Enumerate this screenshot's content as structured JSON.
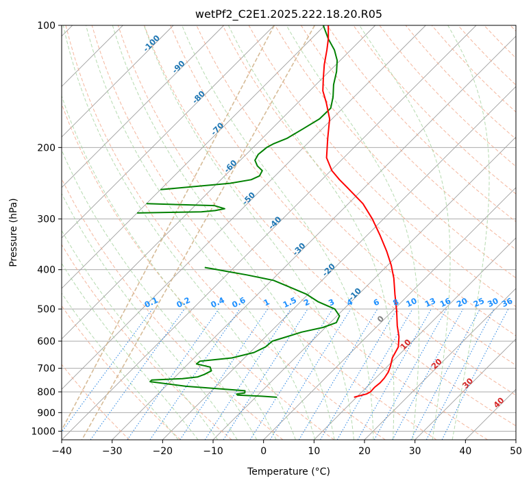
{
  "chart_data": {
    "type": "line",
    "title": "wetPf2_C2E1.2025.222.18.20.R05",
    "xlabel": "Temperature (°C)",
    "ylabel": "Pressure (hPa)",
    "xlim": [
      -40,
      50
    ],
    "ylim": [
      1050,
      100
    ],
    "y_scale": "log",
    "skew": true,
    "grid": true,
    "xticks": [
      "−40",
      "−30",
      "−20",
      "−10",
      "0",
      "10",
      "20",
      "30",
      "40",
      "50"
    ],
    "xtick_values": [
      -40,
      -30,
      -20,
      -10,
      0,
      10,
      20,
      30,
      40,
      50
    ],
    "yticks": [
      "100",
      "200",
      "300",
      "400",
      "500",
      "600",
      "700",
      "800",
      "900",
      "1000"
    ],
    "ytick_values": [
      100,
      200,
      300,
      400,
      500,
      600,
      700,
      800,
      900,
      1000
    ],
    "colors": {
      "temperature": "#ff0000",
      "dewpoint": "#008000",
      "isotherm": "#9e9e9e",
      "dry_adiabat": "#f2a98c",
      "moist_adiabat": "#a8d3a1",
      "mixing_ratio": "#1f7fe0",
      "lcl": "#d2b48c",
      "dry_label": "#d62728",
      "iso_label": "#1f77b4",
      "mr_label": "#1e90ff"
    },
    "series": [
      {
        "kind": "temperature",
        "points": [
          {
            "p": 825,
            "t": 9.5
          },
          {
            "p": 810,
            "t": 11.3
          },
          {
            "p": 800,
            "t": 11.7
          },
          {
            "p": 780,
            "t": 11.6
          },
          {
            "p": 760,
            "t": 11.8
          },
          {
            "p": 740,
            "t": 11.7
          },
          {
            "p": 715,
            "t": 11.3
          },
          {
            "p": 690,
            "t": 10.5
          },
          {
            "p": 660,
            "t": 9.3
          },
          {
            "p": 620,
            "t": 8.3
          },
          {
            "p": 585,
            "t": 6.4
          },
          {
            "p": 550,
            "t": 3.9
          },
          {
            "p": 505,
            "t": 0.8
          },
          {
            "p": 460,
            "t": -2.8
          },
          {
            "p": 420,
            "t": -6.2
          },
          {
            "p": 390,
            "t": -9.3
          },
          {
            "p": 360,
            "t": -13.0
          },
          {
            "p": 330,
            "t": -17.3
          },
          {
            "p": 300,
            "t": -22.2
          },
          {
            "p": 275,
            "t": -27.1
          },
          {
            "p": 255,
            "t": -32.3
          },
          {
            "p": 240,
            "t": -36.5
          },
          {
            "p": 228,
            "t": -39.8
          },
          {
            "p": 212,
            "t": -43.4
          },
          {
            "p": 190,
            "t": -47.0
          },
          {
            "p": 170,
            "t": -50.5
          },
          {
            "p": 155,
            "t": -54.4
          },
          {
            "p": 145,
            "t": -57.4
          },
          {
            "p": 135,
            "t": -59.8
          },
          {
            "p": 125,
            "t": -62.3
          },
          {
            "p": 115,
            "t": -64.7
          },
          {
            "p": 108,
            "t": -66.6
          },
          {
            "p": 100,
            "t": -69.3
          }
        ]
      },
      {
        "kind": "dewpoint",
        "points": [
          {
            "p": 825,
            "t": -5.8
          },
          {
            "p": 820,
            "t": -9.0
          },
          {
            "p": 815,
            "t": -14.0
          },
          {
            "p": 810,
            "t": -14.4
          },
          {
            "p": 805,
            "t": -13.0
          },
          {
            "p": 795,
            "t": -13.4
          },
          {
            "p": 775,
            "t": -26.0
          },
          {
            "p": 755,
            "t": -34.0
          },
          {
            "p": 748,
            "t": -34.0
          },
          {
            "p": 742,
            "t": -28.2
          },
          {
            "p": 735,
            "t": -25.5
          },
          {
            "p": 725,
            "t": -24.7
          },
          {
            "p": 710,
            "t": -24.0
          },
          {
            "p": 695,
            "t": -25.0
          },
          {
            "p": 683,
            "t": -28.3
          },
          {
            "p": 672,
            "t": -28.2
          },
          {
            "p": 660,
            "t": -22.5
          },
          {
            "p": 640,
            "t": -19.2
          },
          {
            "p": 620,
            "t": -18.0
          },
          {
            "p": 600,
            "t": -17.8
          },
          {
            "p": 585,
            "t": -15.8
          },
          {
            "p": 570,
            "t": -13.8
          },
          {
            "p": 555,
            "t": -10.5
          },
          {
            "p": 540,
            "t": -8.8
          },
          {
            "p": 520,
            "t": -9.5
          },
          {
            "p": 500,
            "t": -11.8
          },
          {
            "p": 480,
            "t": -16.5
          },
          {
            "p": 460,
            "t": -20.3
          },
          {
            "p": 440,
            "t": -25.5
          },
          {
            "p": 425,
            "t": -29.6
          },
          {
            "p": 412,
            "t": -36.0
          },
          {
            "p": 405,
            "t": -40.0
          },
          {
            "p": 398,
            "t": -44.0
          },
          {
            "p": 395,
            "t": -45.8
          }
        ]
      },
      {
        "kind": "dewpoint",
        "points": [
          {
            "p": 290,
            "t": -70.0
          },
          {
            "p": 288,
            "t": -57.5
          },
          {
            "p": 286,
            "t": -55.0
          },
          {
            "p": 283,
            "t": -53.5
          },
          {
            "p": 278,
            "t": -56.2
          },
          {
            "p": 275,
            "t": -70.0
          }
        ]
      },
      {
        "kind": "dewpoint",
        "points": [
          {
            "p": 254,
            "t": -70.0
          },
          {
            "p": 250,
            "t": -64.5
          },
          {
            "p": 245,
            "t": -57.5
          },
          {
            "p": 240,
            "t": -54.0
          },
          {
            "p": 235,
            "t": -53.1
          },
          {
            "p": 228,
            "t": -53.6
          },
          {
            "p": 222,
            "t": -55.5
          },
          {
            "p": 215,
            "t": -57.1
          },
          {
            "p": 208,
            "t": -57.6
          },
          {
            "p": 200,
            "t": -57.3
          },
          {
            "p": 196,
            "t": -56.7
          },
          {
            "p": 190,
            "t": -55.1
          },
          {
            "p": 180,
            "t": -53.8
          },
          {
            "p": 170,
            "t": -52.5
          },
          {
            "p": 160,
            "t": -52.4
          },
          {
            "p": 150,
            "t": -54.2
          },
          {
            "p": 140,
            "t": -56.5
          },
          {
            "p": 130,
            "t": -58.5
          },
          {
            "p": 122,
            "t": -60.6
          },
          {
            "p": 115,
            "t": -63.2
          },
          {
            "p": 108,
            "t": -66.6
          },
          {
            "p": 100,
            "t": -70.3
          }
        ]
      }
    ],
    "dry_adiabat_labels": [
      {
        "text": "10",
        "t": 10,
        "p": 618
      },
      {
        "text": "20",
        "t": 20,
        "p": 690
      },
      {
        "text": "30",
        "t": 30,
        "p": 770
      },
      {
        "text": "40",
        "t": 40,
        "p": 860
      }
    ],
    "isotherm_labels": [
      {
        "text": "-100",
        "t": -100,
        "p": 112
      },
      {
        "text": "-90",
        "t": -90,
        "p": 128
      },
      {
        "text": "-80",
        "t": -80,
        "p": 152
      },
      {
        "text": "-70",
        "t": -70,
        "p": 182
      },
      {
        "text": "-60",
        "t": -60,
        "p": 225
      },
      {
        "text": "-50",
        "t": -50,
        "p": 270
      },
      {
        "text": "-40",
        "t": -40,
        "p": 310
      },
      {
        "text": "-30",
        "t": -30,
        "p": 360
      },
      {
        "text": "-20",
        "t": -20,
        "p": 405
      },
      {
        "text": "-10",
        "t": -10,
        "p": 465
      },
      {
        "text": "0",
        "t": 0,
        "p": 535
      }
    ],
    "mixing_ratio_labels": [
      "0.1",
      "0.2",
      "0.4",
      "0.6",
      "1",
      "1.5",
      "2",
      "3",
      "4",
      "6",
      "8",
      "10",
      "13",
      "16",
      "20",
      "25",
      "30",
      "36"
    ],
    "mixing_ratio_values": [
      0.1,
      0.2,
      0.4,
      0.6,
      1,
      1.5,
      2,
      3,
      4,
      6,
      8,
      10,
      13,
      16,
      20,
      25,
      30,
      36
    ]
  }
}
